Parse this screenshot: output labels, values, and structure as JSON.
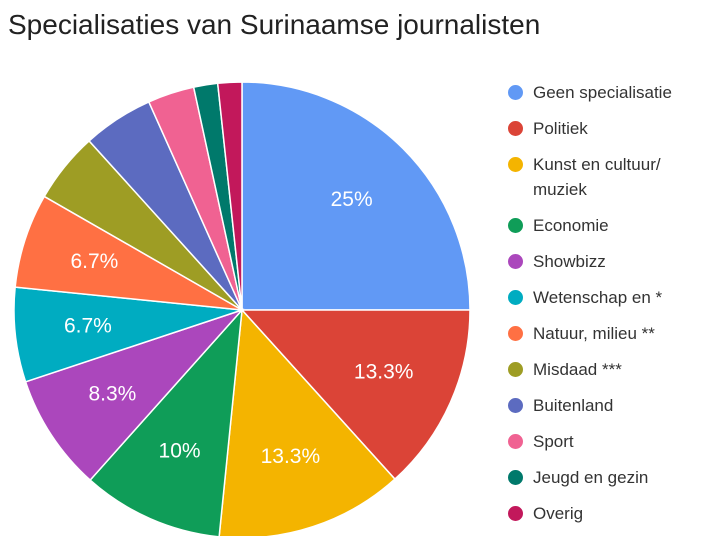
{
  "chart_data": {
    "type": "pie",
    "title": "Specialisaties van Surinaamse journalisten",
    "categories": [
      "Geen specialisatie",
      "Politiek",
      "Kunst en cultuur/ muziek",
      "Economie",
      "Showbizz",
      "Wetenschap en *",
      "Natuur, milieu **",
      "Misdaad ***",
      "Buitenland",
      "Sport",
      "Jeugd en gezin",
      "Overig"
    ],
    "values": [
      25,
      13.3,
      13.3,
      10,
      8.3,
      6.7,
      6.7,
      5,
      5,
      3.3,
      1.7,
      1.7
    ],
    "value_labels": [
      "25%",
      "13.3%",
      "13.3%",
      "10%",
      "8.3%",
      "6.7%",
      "6.7%",
      null,
      null,
      null,
      null,
      null
    ],
    "colors": [
      "#6199f5",
      "#db4437",
      "#f4b400",
      "#0f9d58",
      "#ab47bc",
      "#00acc1",
      "#ff7043",
      "#9e9d24",
      "#5c6bc0",
      "#f06292",
      "#00796b",
      "#c2185b"
    ],
    "legend": "right"
  }
}
